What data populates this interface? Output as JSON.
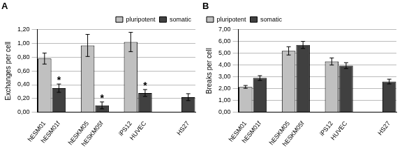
{
  "chart_data": [
    {
      "type": "bar",
      "title": "A",
      "y_label": "Exchanges per cell",
      "categories": [
        "hESM01",
        "hESM01f",
        null,
        "hESKM05",
        "hESKM05f",
        null,
        "iPS12",
        "HUVEC",
        null,
        null,
        "HS27"
      ],
      "series": [
        {
          "name": "pluripotent",
          "color": "#c0c0c0",
          "values": [
            0.78,
            null,
            null,
            0.97,
            null,
            null,
            1.02,
            null,
            null,
            null,
            null
          ],
          "errors": [
            0.08,
            null,
            null,
            0.16,
            null,
            null,
            0.14,
            null,
            null,
            null,
            null
          ]
        },
        {
          "name": "somatic",
          "color": "#404040",
          "values": [
            null,
            0.35,
            null,
            null,
            0.1,
            null,
            null,
            0.28,
            null,
            null,
            0.22
          ],
          "errors": [
            null,
            0.06,
            null,
            null,
            0.05,
            null,
            null,
            0.05,
            null,
            null,
            0.05
          ]
        }
      ],
      "annotations": [
        {
          "text": "*",
          "x": "hESM01f"
        },
        {
          "text": "*",
          "x": "hESKM05f"
        },
        {
          "text": "*",
          "x": "HUVEC"
        }
      ],
      "ylim": [
        0,
        1.2
      ],
      "yticks": [
        {
          "value": 0,
          "label": "0,00"
        },
        {
          "value": 0.2,
          "label": "0,20"
        },
        {
          "value": 0.4,
          "label": "0,40"
        },
        {
          "value": 0.6,
          "label": "0,60"
        },
        {
          "value": 0.8,
          "label": "0,80"
        },
        {
          "value": 1.0,
          "label": "1,00"
        },
        {
          "value": 1.2,
          "label": "1,20"
        }
      ],
      "grid": true,
      "legend": "upper right"
    },
    {
      "type": "bar",
      "title": "B",
      "y_label": "Breaks per cell",
      "categories": [
        "hESM01",
        "hESM01f",
        null,
        "hESKM05",
        "hESKM05f",
        null,
        "iPS12",
        "HUVEC",
        null,
        null,
        "HS27"
      ],
      "series": [
        {
          "name": "pluripotent",
          "color": "#c0c0c0",
          "values": [
            2.15,
            null,
            null,
            5.2,
            null,
            null,
            4.3,
            null,
            null,
            null,
            null
          ],
          "errors": [
            0.12,
            null,
            null,
            0.35,
            null,
            null,
            0.3,
            null,
            null,
            null,
            null
          ]
        },
        {
          "name": "somatic",
          "color": "#404040",
          "values": [
            null,
            2.9,
            null,
            null,
            5.7,
            null,
            null,
            3.95,
            null,
            null,
            2.6
          ],
          "errors": [
            null,
            0.2,
            null,
            null,
            0.3,
            null,
            null,
            0.25,
            null,
            null,
            0.2
          ]
        }
      ],
      "ylim": [
        0,
        7
      ],
      "yticks": [
        {
          "value": 0,
          "label": "0,00"
        },
        {
          "value": 1,
          "label": "1,00"
        },
        {
          "value": 2,
          "label": "2,00"
        },
        {
          "value": 3,
          "label": "3,00"
        },
        {
          "value": 4,
          "label": "4,00"
        },
        {
          "value": 5,
          "label": "5,00"
        },
        {
          "value": 6,
          "label": "6,00"
        },
        {
          "value": 7,
          "label": "7,00"
        }
      ],
      "grid": true,
      "legend": "upper left"
    }
  ]
}
